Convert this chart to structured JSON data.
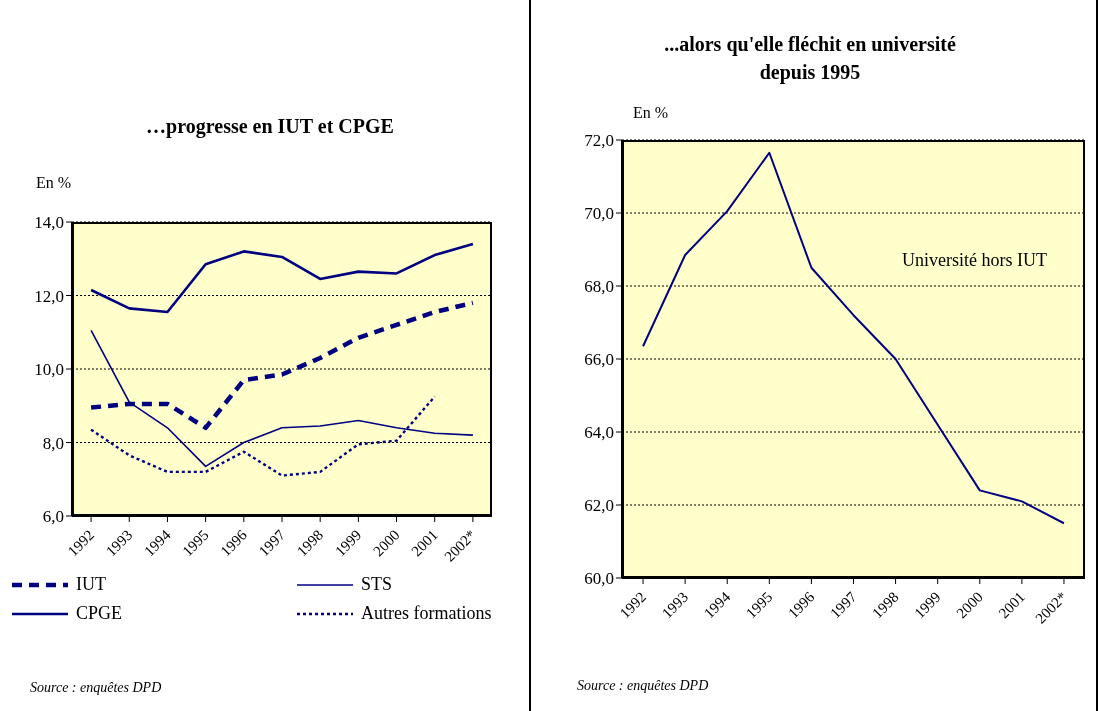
{
  "chart_data": [
    {
      "type": "line",
      "title": "…progresse en IUT et CPGE",
      "ylabel": "En %",
      "categories": [
        "1992",
        "1993",
        "1994",
        "1995",
        "1996",
        "1997",
        "1998",
        "1999",
        "2000",
        "2001",
        "2002*"
      ],
      "ylim": [
        6,
        14
      ],
      "yticks": [
        {
          "value": 6,
          "label": "6,0"
        },
        {
          "value": 8,
          "label": "8,0"
        },
        {
          "value": 10,
          "label": "10,0"
        },
        {
          "value": 12,
          "label": "12,0"
        },
        {
          "value": 14,
          "label": "14,0"
        }
      ],
      "grid": "y",
      "legend": "bottom",
      "marker": "none",
      "series": [
        {
          "name": "IUT",
          "color": "#000080",
          "line_style": "dashed",
          "values": [
            8.95,
            9.05,
            9.05,
            8.4,
            9.7,
            9.85,
            10.3,
            10.85,
            11.2,
            11.55,
            11.8
          ]
        },
        {
          "name": "STS",
          "color": "#000080",
          "line_style": "solid",
          "values": [
            11.05,
            9.1,
            8.4,
            7.35,
            8.0,
            8.4,
            8.45,
            8.6,
            8.4,
            8.25,
            8.2
          ]
        },
        {
          "name": "CPGE",
          "color": "#000080",
          "line_style": "solid",
          "values": [
            12.15,
            11.65,
            11.55,
            12.85,
            13.2,
            13.05,
            12.45,
            12.65,
            12.6,
            13.1,
            13.4
          ]
        },
        {
          "name": "Autres formations",
          "color": "#000080",
          "line_style": "dotted",
          "values": [
            8.35,
            7.65,
            7.2,
            7.2,
            7.75,
            7.1,
            7.2,
            7.95,
            8.05,
            9.25,
            null
          ]
        }
      ],
      "annotations": [
        "Source : enquêtes DPD"
      ]
    },
    {
      "type": "line",
      "title": "...alors qu'elle fléchit en université depuis 1995",
      "ylabel": "En %",
      "categories": [
        "1992",
        "1993",
        "1994",
        "1995",
        "1996",
        "1997",
        "1998",
        "1999",
        "2000",
        "2001",
        "2002*"
      ],
      "ylim": [
        60,
        72
      ],
      "yticks": [
        {
          "value": 60,
          "label": "60,0"
        },
        {
          "value": 62,
          "label": "62,0"
        },
        {
          "value": 64,
          "label": "64,0"
        },
        {
          "value": 66,
          "label": "66,0"
        },
        {
          "value": 68,
          "label": "68,0"
        },
        {
          "value": 70,
          "label": "70,0"
        },
        {
          "value": 72,
          "label": "72,0"
        }
      ],
      "grid": "y",
      "marker": "none",
      "series": [
        {
          "name": "Université hors IUT",
          "color": "#000080",
          "line_style": "solid",
          "values": [
            66.35,
            68.85,
            70.05,
            71.65,
            68.5,
            67.2,
            66.0,
            64.2,
            62.4,
            62.1,
            61.5
          ]
        }
      ],
      "annotations": [
        "Source : enquêtes DPD"
      ]
    }
  ]
}
